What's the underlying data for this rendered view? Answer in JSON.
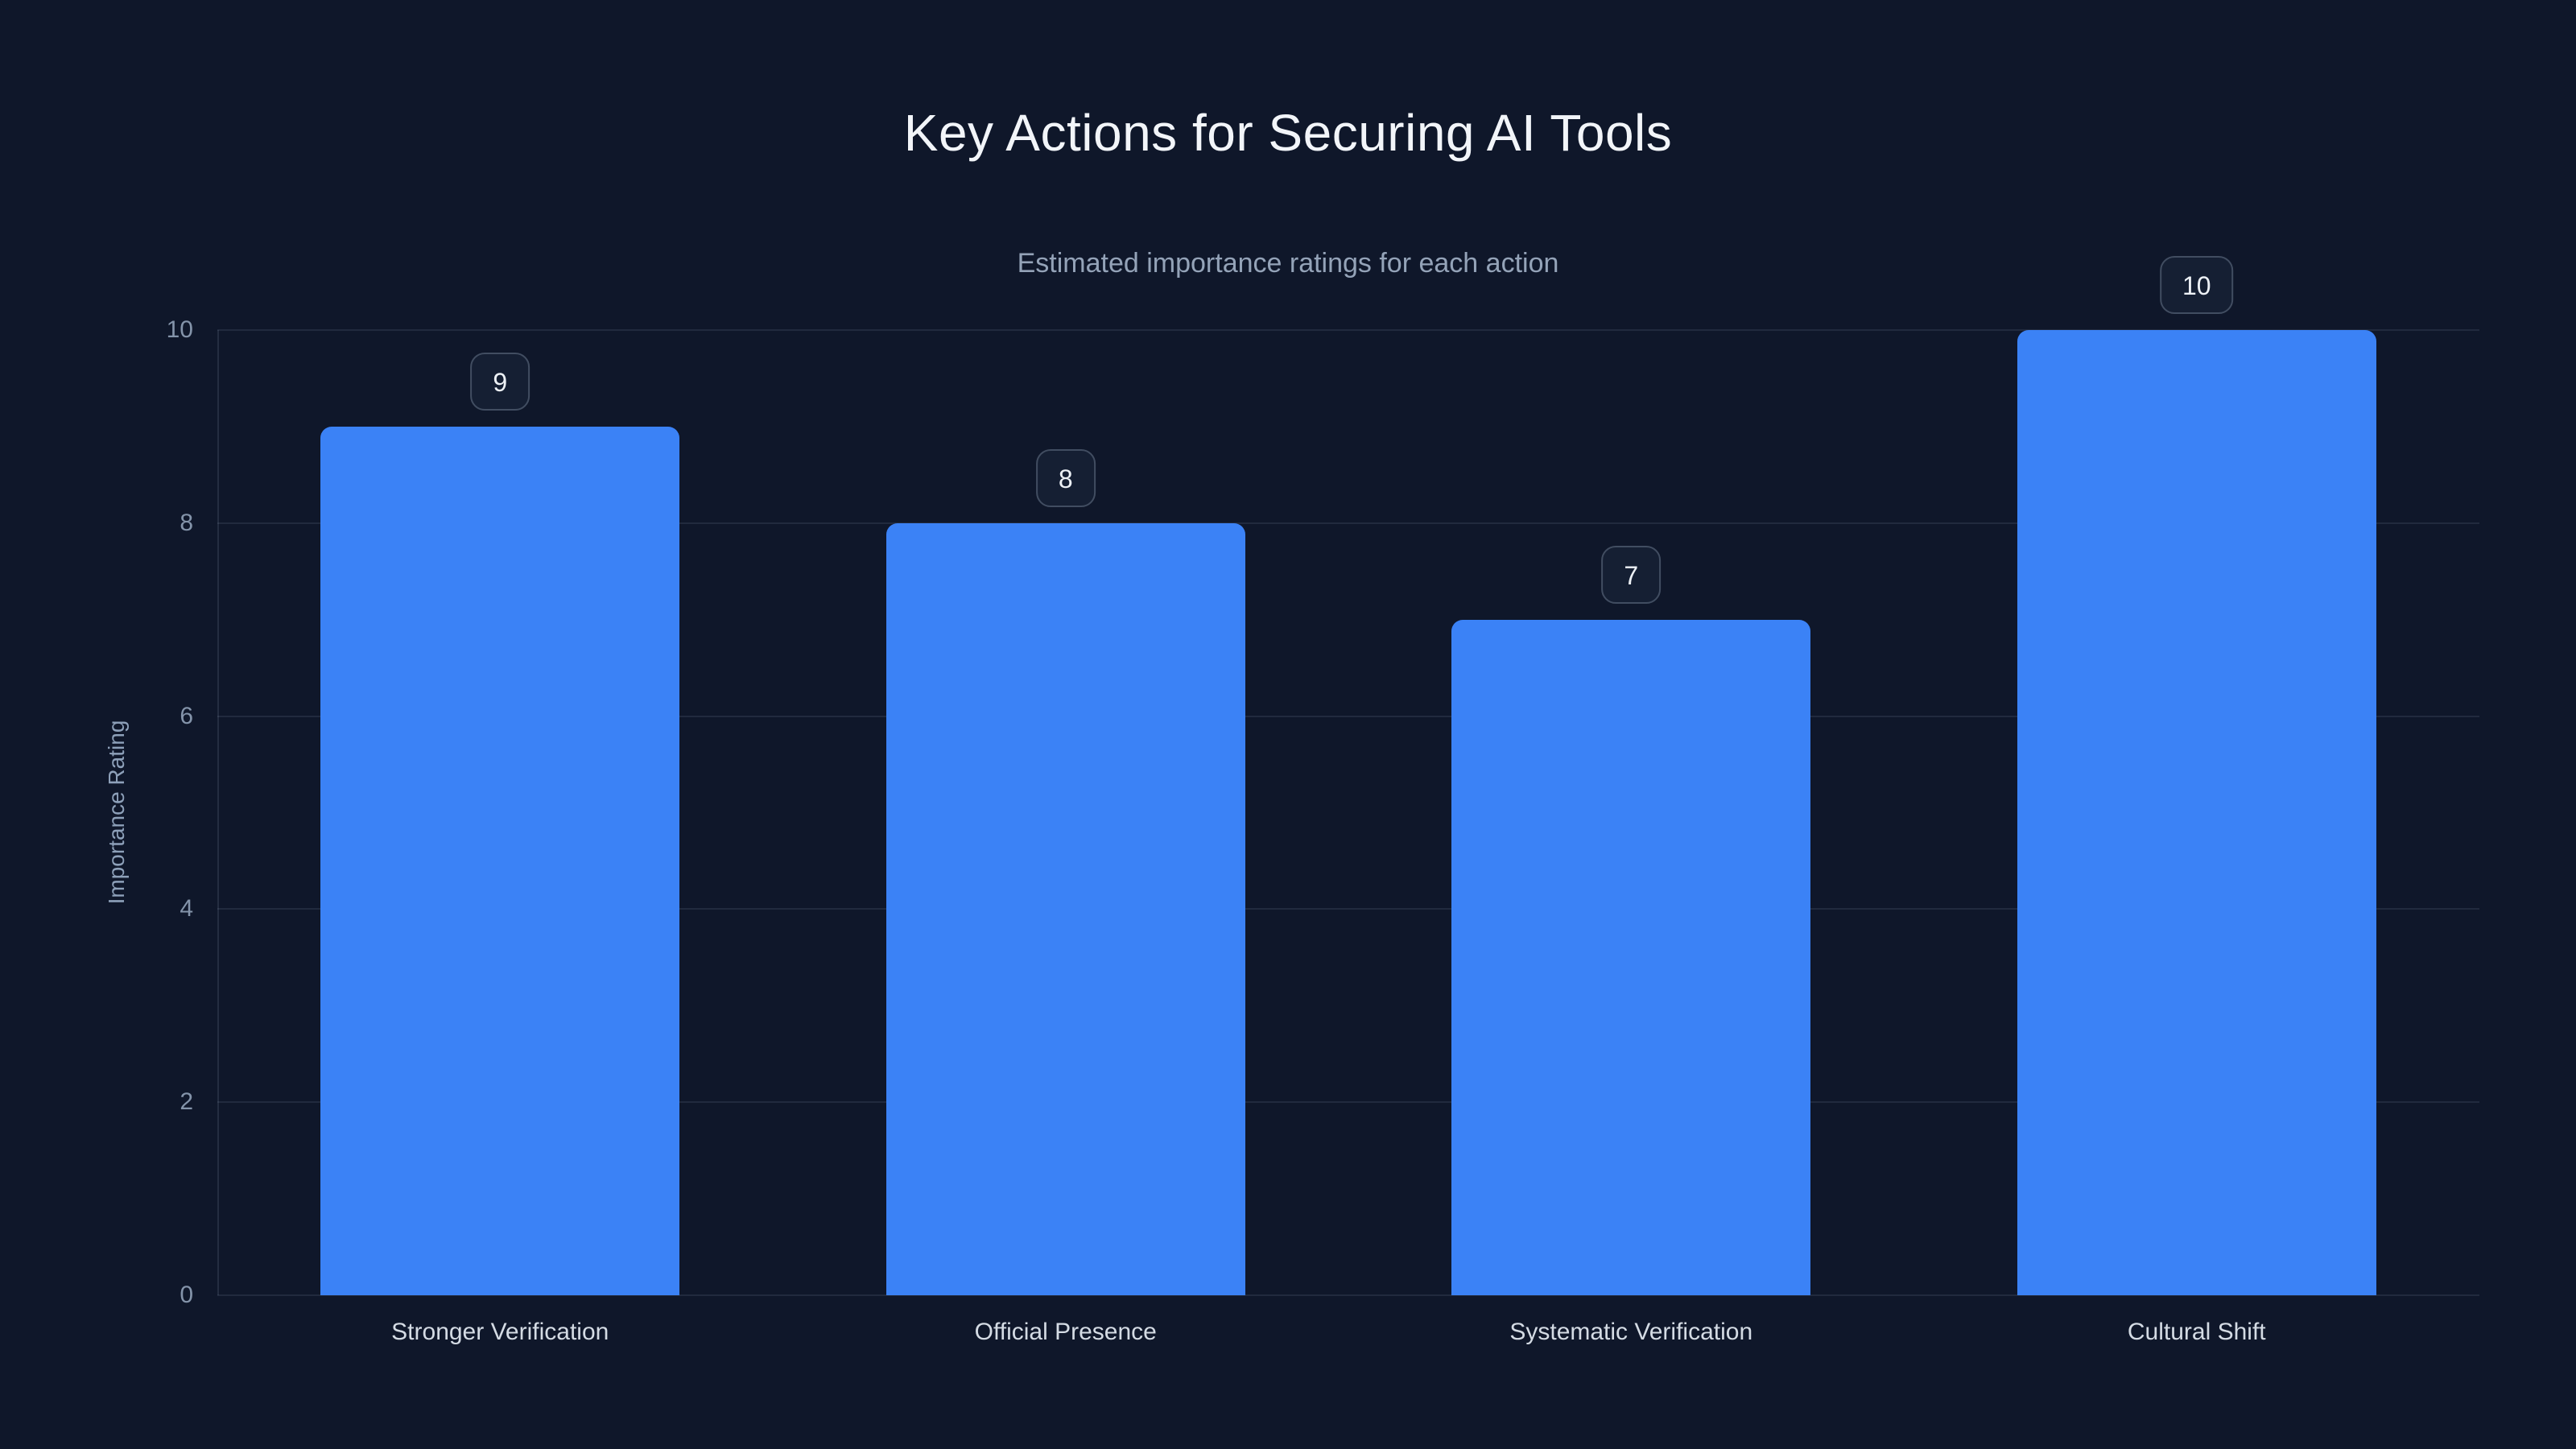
{
  "page": {
    "background_color": "#0f172a"
  },
  "header": {
    "title": "Key Actions for Securing AI Tools",
    "subtitle": "Estimated importance ratings for each action"
  },
  "chart_data": {
    "type": "bar",
    "title": "Key Actions for Securing AI Tools",
    "subtitle": "Estimated importance ratings for each action",
    "categories": [
      "Stronger Verification",
      "Official Presence",
      "Systematic Verification",
      "Cultural Shift"
    ],
    "values": [
      9,
      8,
      7,
      10
    ],
    "value_labels": [
      "9",
      "8",
      "7",
      "10"
    ],
    "xlabel": "",
    "ylabel": "Importance Rating",
    "ylim": [
      0,
      10
    ],
    "yticks": [
      0,
      2,
      4,
      6,
      8,
      10
    ],
    "grid": true,
    "legend": false,
    "bar_color": "#3b82f6",
    "badge_border_color": "#414d61",
    "badge_background_color": "#151f33",
    "title_color": "#f2f5f9",
    "subtitle_color": "#94a3b8",
    "tick_color": "#8494aa",
    "category_label_color": "#d4dbe4"
  }
}
